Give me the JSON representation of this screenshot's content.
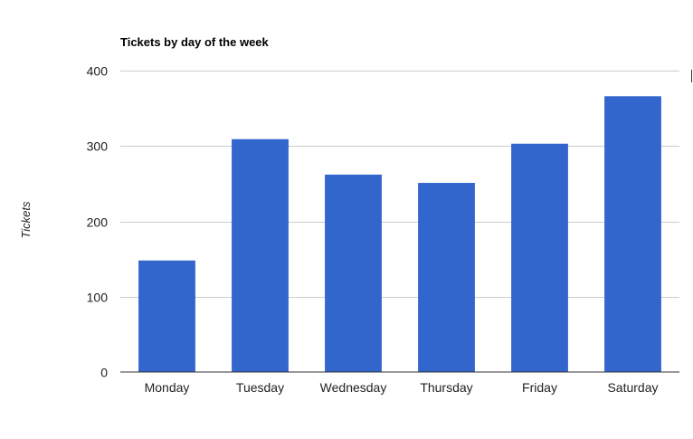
{
  "chart_data": {
    "type": "bar",
    "title": "Tickets by day of the week",
    "xlabel": "",
    "ylabel": "Tickets",
    "categories": [
      "Monday",
      "Tuesday",
      "Wednesday",
      "Thursday",
      "Friday",
      "Saturday"
    ],
    "values": [
      148,
      309,
      262,
      251,
      303,
      366
    ],
    "ylim": [
      0,
      400
    ],
    "yticks": [
      0,
      100,
      200,
      300,
      400
    ],
    "grid": true,
    "legend": "none",
    "bar_color": "#3366cc"
  }
}
